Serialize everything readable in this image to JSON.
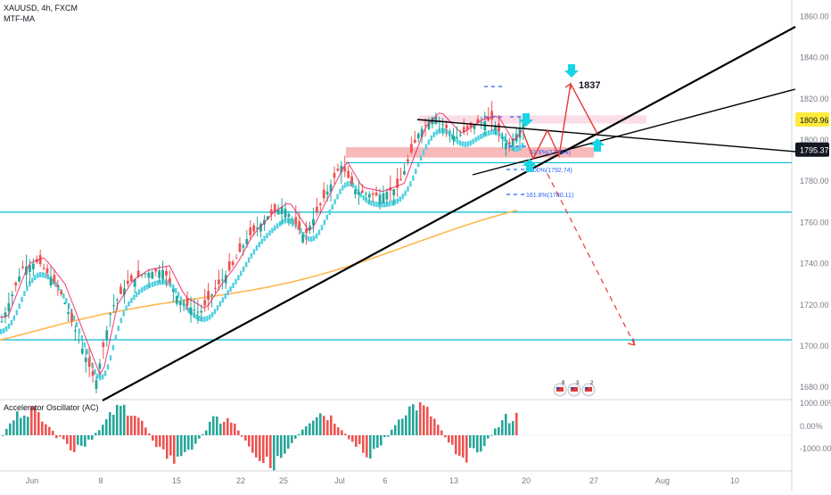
{
  "header": {
    "symbol_line": "XAUUSD, 4h, FXCM",
    "indicator_line": "MTF-MA"
  },
  "oscillator": {
    "title": "Accelerator Oscillator (AC)",
    "ticks": [
      "1000.00%",
      "0.00%",
      "-1000.00%"
    ]
  },
  "annotations": {
    "target_label": "1837",
    "fib_labels": [
      "61.8%(1799.4)",
      "100%(1792.74)",
      "161.8%(1780.11)"
    ]
  },
  "price_badges": [
    {
      "text": "1809.96",
      "bg": "#ffeb3b",
      "fg": "#131722"
    },
    {
      "text": "1795.37",
      "bg": "#131722",
      "fg": "#ffffff"
    }
  ],
  "event_icons": [
    {
      "country": "US",
      "count": "8"
    },
    {
      "country": "US",
      "count": "3"
    },
    {
      "country": "US",
      "count": "2"
    }
  ],
  "colors": {
    "bull": "#26a69a",
    "bear": "#ef5350",
    "ma_fast": "#4dd0e1",
    "ma_slow": "#ffb74d",
    "ma_mtf": "#e91e63",
    "hline": "#00bcd4",
    "zone": "#f08080",
    "trend": "#000000",
    "arrow_path": "#e53935",
    "cyan_arrow": "#18d4e4"
  },
  "chart_data": {
    "type": "candlestick",
    "title": "XAUUSD, 4h, FXCM",
    "xlabel": "",
    "ylabel": "",
    "y_ticks": [
      1680,
      1700,
      1720,
      1740,
      1760,
      1780,
      1800,
      1820,
      1840,
      1860
    ],
    "y_tick_labels": [
      "1680.00",
      "1700.00",
      "1720.00",
      "1740.00",
      "1760.00",
      "1780.00",
      "1800.00",
      "1820.00",
      "1840.00",
      "1860.00"
    ],
    "ylim": [
      1674,
      1868
    ],
    "x_ticks": [
      "Jun",
      "8",
      "15",
      "22",
      "25",
      "Jul",
      "6",
      "13",
      "20",
      "27",
      "Aug",
      "10"
    ],
    "last_price": 1809.96,
    "support_levels": [
      1789,
      1765,
      1703
    ],
    "resistance_zone": [
      1791.5,
      1796.5
    ],
    "target": 1837,
    "projected_low": 1703,
    "fib_levels": [
      {
        "label": "61.8%",
        "value": 1799.4
      },
      {
        "label": "100%",
        "value": 1792.74
      },
      {
        "label": "161.8%",
        "value": 1780.11
      }
    ],
    "price_path": [
      {
        "t": 0.0,
        "p": 1712
      },
      {
        "t": 0.04,
        "p": 1738
      },
      {
        "t": 0.07,
        "p": 1741
      },
      {
        "t": 0.11,
        "p": 1728
      },
      {
        "t": 0.16,
        "p": 1695
      },
      {
        "t": 0.18,
        "p": 1682
      },
      {
        "t": 0.21,
        "p": 1718
      },
      {
        "t": 0.24,
        "p": 1730
      },
      {
        "t": 0.27,
        "p": 1735
      },
      {
        "t": 0.31,
        "p": 1737
      },
      {
        "t": 0.34,
        "p": 1722
      },
      {
        "t": 0.38,
        "p": 1716
      },
      {
        "t": 0.41,
        "p": 1728
      },
      {
        "t": 0.44,
        "p": 1738
      },
      {
        "t": 0.47,
        "p": 1752
      },
      {
        "t": 0.51,
        "p": 1763
      },
      {
        "t": 0.54,
        "p": 1768
      },
      {
        "t": 0.58,
        "p": 1753
      },
      {
        "t": 0.62,
        "p": 1773
      },
      {
        "t": 0.65,
        "p": 1788
      },
      {
        "t": 0.68,
        "p": 1775
      },
      {
        "t": 0.72,
        "p": 1773
      },
      {
        "t": 0.76,
        "p": 1777
      },
      {
        "t": 0.8,
        "p": 1804
      },
      {
        "t": 0.83,
        "p": 1812
      },
      {
        "t": 0.87,
        "p": 1801
      },
      {
        "t": 0.91,
        "p": 1808
      },
      {
        "t": 0.94,
        "p": 1810
      },
      {
        "t": 0.97,
        "p": 1797
      },
      {
        "t": 1.0,
        "p": 1808
      }
    ]
  }
}
